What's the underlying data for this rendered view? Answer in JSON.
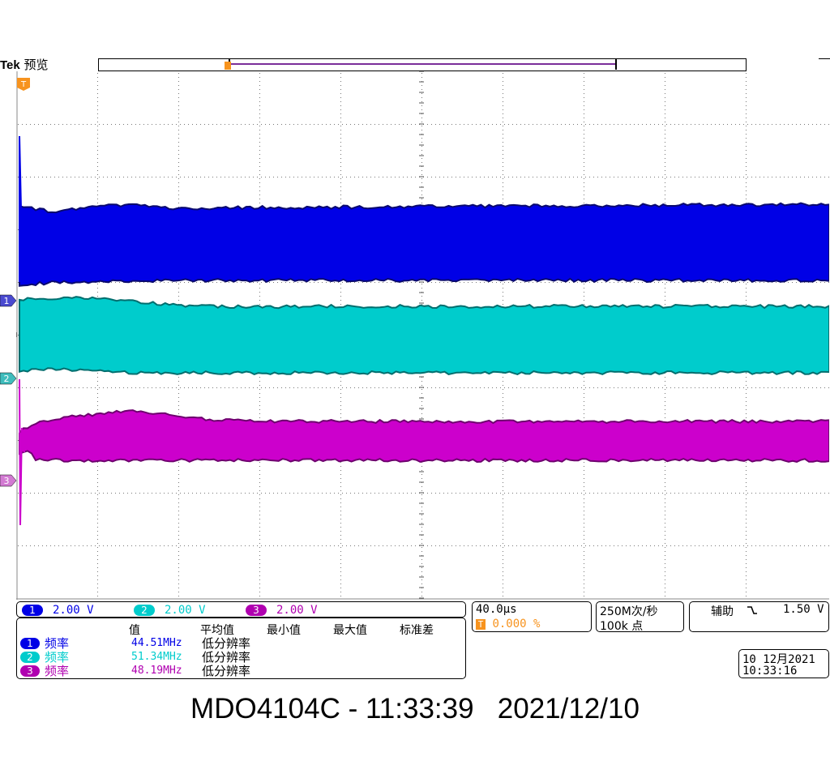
{
  "header": {
    "brand": "Tek",
    "mode": "预览"
  },
  "colors": {
    "ch1": "#0000e6",
    "ch1_edge": "#0a0a6e",
    "ch2": "#00cccc",
    "ch2_edge": "#006e6e",
    "ch3": "#cc00cc",
    "ch3_edge": "#6e006e",
    "trigger": "#f7931e"
  },
  "markers": {
    "trigger": "T",
    "ch1": "1",
    "ch2": "2",
    "ch3": "3"
  },
  "channels": [
    {
      "id": "1",
      "scale": "2.00 V"
    },
    {
      "id": "2",
      "scale": "2.00 V"
    },
    {
      "id": "3",
      "scale": "2.00 V"
    }
  ],
  "measurements": {
    "headers": [
      "值",
      "平均值",
      "最小值",
      "最大值",
      "标准差"
    ],
    "rows": [
      {
        "ch": "1",
        "name": "频率",
        "value": "44.51MHz",
        "status": "低分辨率"
      },
      {
        "ch": "2",
        "name": "频率",
        "value": "51.34MHz",
        "status": "低分辨率"
      },
      {
        "ch": "3",
        "name": "频率",
        "value": "48.19MHz",
        "status": "低分辨率"
      }
    ]
  },
  "timebase": {
    "scale": "40.0µs",
    "trigger_marker": "T",
    "position": "0.000 %"
  },
  "acquisition": {
    "rate": "250M次/秒",
    "length": "100k 点"
  },
  "trigger": {
    "source": "辅助",
    "slope_icon": "falling-edge",
    "level": "1.50 V"
  },
  "datetime": {
    "date": "10 12月2021",
    "time": "10:33:16"
  },
  "footer": "MDO4104C - 11:33:39   2021/12/10"
}
